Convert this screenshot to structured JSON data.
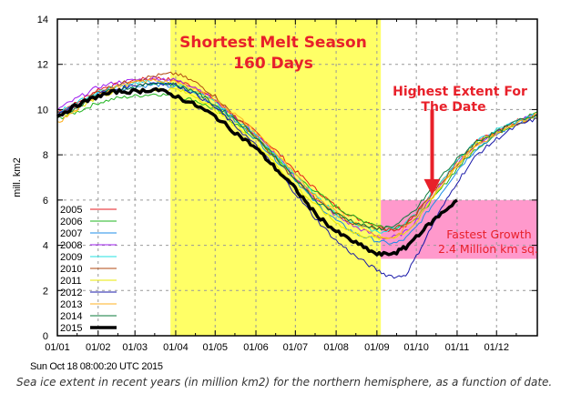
{
  "chart_data": {
    "type": "line",
    "title": "",
    "xlabel": "",
    "ylabel": "mill. km2",
    "ylim": [
      0,
      14
    ],
    "yticks": [
      0,
      2,
      4,
      6,
      8,
      10,
      12,
      14
    ],
    "xticks": [
      "01/01",
      "01/02",
      "01/03",
      "01/04",
      "01/05",
      "01/06",
      "01/07",
      "01/08",
      "01/09",
      "01/10",
      "01/11",
      "01/12"
    ],
    "xtick_days": [
      0,
      31,
      59,
      90,
      120,
      151,
      181,
      212,
      243,
      273,
      304,
      334
    ],
    "xlim_days": [
      0,
      365
    ],
    "grid": true,
    "legend_position": "bottom-left",
    "x_days": [
      0,
      15,
      31,
      45,
      59,
      75,
      90,
      105,
      120,
      135,
      151,
      166,
      181,
      196,
      212,
      227,
      243,
      250,
      258,
      265,
      273,
      288,
      304,
      319,
      334,
      350,
      365
    ],
    "series": [
      {
        "name": "2005",
        "color": "#e41a1c",
        "width": 1,
        "values": [
          9.9,
          10.3,
          10.9,
          11.1,
          11.3,
          11.4,
          11.3,
          11.0,
          10.4,
          9.7,
          9.0,
          8.2,
          7.3,
          6.5,
          5.7,
          5.2,
          4.9,
          4.7,
          4.7,
          4.9,
          5.4,
          6.6,
          7.7,
          8.6,
          9.0,
          9.5,
          9.8
        ]
      },
      {
        "name": "2006",
        "color": "#1fb41f",
        "width": 1,
        "values": [
          9.6,
          9.9,
          10.3,
          10.5,
          10.6,
          10.7,
          10.6,
          10.4,
          10.0,
          9.4,
          8.7,
          7.9,
          7.1,
          6.4,
          5.7,
          5.2,
          4.9,
          4.8,
          4.8,
          5.0,
          5.2,
          6.2,
          7.4,
          8.3,
          8.9,
          9.5,
          9.9
        ]
      },
      {
        "name": "2007",
        "color": "#1c8ce8",
        "width": 1,
        "values": [
          9.8,
          10.2,
          10.7,
          10.9,
          11.0,
          11.1,
          11.0,
          10.7,
          10.2,
          9.5,
          8.7,
          7.8,
          6.9,
          5.9,
          5.1,
          4.5,
          4.2,
          4.1,
          4.1,
          4.3,
          4.8,
          6.0,
          7.3,
          8.3,
          8.9,
          9.4,
          9.7
        ]
      },
      {
        "name": "2008",
        "color": "#a020f0",
        "width": 1,
        "values": [
          10.0,
          10.5,
          11.0,
          11.2,
          11.3,
          11.4,
          11.3,
          11.0,
          10.4,
          9.7,
          8.9,
          8.0,
          7.0,
          6.1,
          5.3,
          4.8,
          4.4,
          4.3,
          4.4,
          4.6,
          5.1,
          6.4,
          7.6,
          8.5,
          9.0,
          9.5,
          9.8
        ]
      },
      {
        "name": "2009",
        "color": "#20e0e0",
        "width": 1,
        "values": [
          9.9,
          10.3,
          10.8,
          11.0,
          11.2,
          11.2,
          11.1,
          10.8,
          10.3,
          9.6,
          8.9,
          8.0,
          7.1,
          6.2,
          5.4,
          4.9,
          4.6,
          4.6,
          4.8,
          5.0,
          5.4,
          6.6,
          7.7,
          8.6,
          9.1,
          9.5,
          9.8
        ]
      },
      {
        "name": "2010",
        "color": "#b04a10",
        "width": 1,
        "values": [
          9.8,
          10.2,
          10.8,
          11.1,
          11.3,
          11.5,
          11.6,
          11.2,
          10.6,
          9.7,
          8.8,
          7.8,
          6.9,
          6.1,
          5.4,
          4.9,
          4.7,
          4.7,
          4.8,
          5.0,
          5.4,
          6.5,
          7.6,
          8.5,
          9.0,
          9.4,
          9.7
        ]
      },
      {
        "name": "2011",
        "color": "#e8e800",
        "width": 1,
        "values": [
          9.6,
          10.0,
          10.6,
          10.8,
          10.8,
          10.9,
          10.9,
          10.6,
          10.0,
          9.3,
          8.5,
          7.6,
          6.6,
          5.8,
          5.0,
          4.5,
          4.3,
          4.3,
          4.4,
          4.6,
          5.0,
          6.3,
          7.6,
          8.5,
          9.0,
          9.4,
          9.7
        ]
      },
      {
        "name": "2012",
        "color": "#1818a8",
        "width": 1,
        "values": [
          9.8,
          10.2,
          10.7,
          10.9,
          11.1,
          11.2,
          11.1,
          10.7,
          10.1,
          9.3,
          8.4,
          7.4,
          6.3,
          5.2,
          4.2,
          3.5,
          2.9,
          2.7,
          2.6,
          2.7,
          3.5,
          5.2,
          6.8,
          8.0,
          8.7,
          9.3,
          9.6
        ]
      },
      {
        "name": "2013",
        "color": "#ffb020",
        "width": 1,
        "values": [
          9.4,
          10.0,
          10.7,
          11.0,
          11.2,
          11.3,
          11.2,
          10.9,
          10.4,
          9.8,
          9.0,
          8.1,
          7.1,
          6.2,
          5.5,
          5.0,
          4.4,
          4.3,
          4.4,
          4.8,
          5.3,
          6.4,
          7.5,
          8.4,
          8.9,
          9.4,
          9.8
        ]
      },
      {
        "name": "2014",
        "color": "#0a7a3a",
        "width": 1,
        "values": [
          9.7,
          10.1,
          10.7,
          10.9,
          11.0,
          11.2,
          11.1,
          10.8,
          10.2,
          9.6,
          8.8,
          7.9,
          6.9,
          6.0,
          5.4,
          5.0,
          4.7,
          4.8,
          4.9,
          5.2,
          5.6,
          6.8,
          7.8,
          8.6,
          9.0,
          9.5,
          9.8
        ]
      },
      {
        "name": "2015",
        "color": "#000000",
        "width": 3.5,
        "values": [
          9.7,
          10.2,
          10.6,
          10.8,
          10.8,
          10.9,
          10.6,
          10.2,
          9.7,
          9.0,
          8.3,
          7.4,
          6.5,
          5.4,
          4.6,
          4.1,
          3.6,
          3.6,
          3.7,
          3.9,
          4.4,
          5.2,
          6.0,
          null,
          null,
          null,
          null
        ]
      }
    ],
    "highlights": [
      {
        "type": "band",
        "label": "Shortest Melt Season",
        "x_days_from": 86,
        "x_days_to": 246,
        "color": "#ffff66"
      },
      {
        "type": "box",
        "label": "Fastest Growth",
        "x_days_from": 246,
        "x_days_to": 365,
        "y_from": 3.4,
        "y_to": 6.0,
        "color": "#ff99cc"
      }
    ],
    "annotations": [
      {
        "text_line1": "Shortest Melt Season",
        "text_line2": "160 Days"
      },
      {
        "text_line1": "Highest Extent For",
        "text_line2": "The Date"
      },
      {
        "text_line1": "Fastest Growth",
        "text_line2": "2.4 Million km sq."
      }
    ],
    "arrow": {
      "from_day": 285,
      "from_value": 10.0,
      "to_day": 285,
      "to_value": 6.2,
      "color": "#e8202a"
    }
  },
  "footer": {
    "timestamp": "Sun Oct 18 08:00:20 UTC 2015",
    "caption": "Sea ice extent in recent years (in million km2) for the northern hemisphere, as a function of date."
  }
}
